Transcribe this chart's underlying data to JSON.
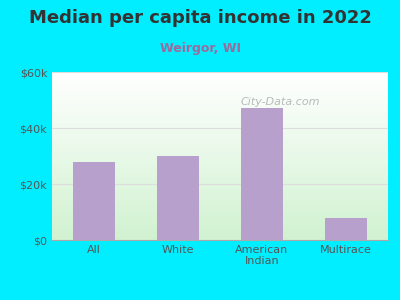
{
  "title": "Median per capita income in 2022",
  "subtitle": "Weirgor, WI",
  "categories": [
    "All",
    "White",
    "American\nIndian",
    "Multirace"
  ],
  "values": [
    28000,
    30000,
    47000,
    8000
  ],
  "bar_color": "#b8a0cc",
  "background_color": "#00eeff",
  "title_color": "#333333",
  "subtitle_color": "#9b6b9b",
  "tick_color": "#555555",
  "ylim": [
    0,
    60000
  ],
  "yticks": [
    0,
    20000,
    40000,
    60000
  ],
  "ytick_labels": [
    "$0",
    "$20k",
    "$40k",
    "$60k"
  ],
  "title_fontsize": 13,
  "subtitle_fontsize": 9,
  "watermark_text": "City-Data.com",
  "grid_color": "#dddddd"
}
